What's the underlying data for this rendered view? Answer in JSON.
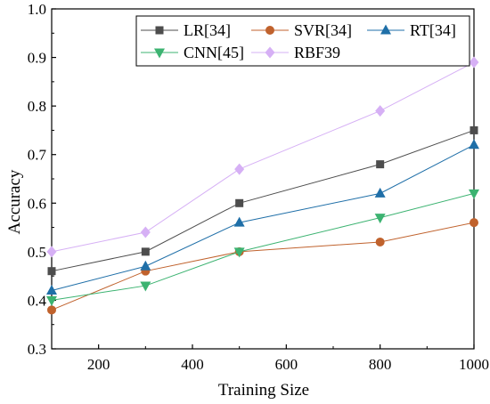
{
  "chart_data": {
    "type": "line",
    "xlabel": "Training Size",
    "ylabel": "Accuracy",
    "xlim": [
      100,
      1000
    ],
    "ylim": [
      0.3,
      1.0
    ],
    "x_ticks": [
      200,
      400,
      600,
      800,
      1000
    ],
    "y_ticks": [
      0.3,
      0.4,
      0.5,
      0.6,
      0.7,
      0.8,
      0.9,
      1.0
    ],
    "x_tick_labels": [
      "200",
      "400",
      "600",
      "800",
      "1000"
    ],
    "y_tick_labels": [
      "0.3",
      "0.4",
      "0.5",
      "0.6",
      "0.7",
      "0.8",
      "0.9",
      "1.0"
    ],
    "grid": false,
    "legend_position": "top-right",
    "x": [
      100,
      300,
      500,
      800,
      1000
    ],
    "series": [
      {
        "name": "LR[34]",
        "marker": "square",
        "color": "#4d4d4d",
        "values": [
          0.46,
          0.5,
          0.6,
          0.68,
          0.75
        ]
      },
      {
        "name": "SVR[34]",
        "marker": "circle",
        "color": "#c0622d",
        "values": [
          0.38,
          0.46,
          0.5,
          0.52,
          0.56
        ]
      },
      {
        "name": "RT[34]",
        "marker": "triangle-up",
        "color": "#1f6fa8",
        "values": [
          0.42,
          0.47,
          0.56,
          0.62,
          0.72
        ]
      },
      {
        "name": "CNN[45]",
        "marker": "triangle-down",
        "color": "#3cb371",
        "values": [
          0.4,
          0.43,
          0.5,
          0.57,
          0.62
        ]
      },
      {
        "name": "RBF39",
        "marker": "diamond",
        "color": "#d6b0f5",
        "values": [
          0.5,
          0.54,
          0.67,
          0.79,
          0.89
        ]
      }
    ]
  }
}
